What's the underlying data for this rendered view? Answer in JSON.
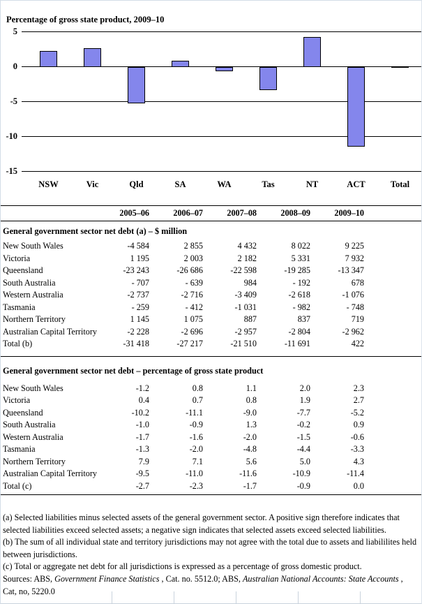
{
  "chart_data": {
    "type": "bar",
    "title": "Percentage of gross state product, 2009–10",
    "categories": [
      "NSW",
      "Vic",
      "Qld",
      "SA",
      "WA",
      "Tas",
      "NT",
      "ACT",
      "Total"
    ],
    "values": [
      2.3,
      2.7,
      -5.2,
      0.9,
      -0.6,
      -3.3,
      4.3,
      -11.4,
      0.0
    ],
    "ylabel": "",
    "xlabel": "",
    "ylim": [
      -15,
      5
    ],
    "yticks": [
      5,
      0,
      -5,
      -10,
      -15
    ],
    "grid": true,
    "legend": "none",
    "bar_color": "#8486ec",
    "bar_border_color": "#000000"
  },
  "table": {
    "col_headers": [
      "2005–06",
      "2006–07",
      "2007–08",
      "2008–09",
      "2009–10"
    ],
    "sections": [
      {
        "title": "General government sector net debt (a) – $ million",
        "rows": [
          {
            "label": "New South Wales",
            "values": [
              "-4 584",
              "2 855",
              "4 432",
              "8 022",
              "9 225"
            ]
          },
          {
            "label": "Victoria",
            "values": [
              "1 195",
              "2 003",
              "2 182",
              "5 331",
              "7 932"
            ]
          },
          {
            "label": "Queensland",
            "values": [
              "-23 243",
              "-26 686",
              "-22 598",
              "-19 285",
              "-13 347"
            ]
          },
          {
            "label": "South Australia",
            "values": [
              "- 707",
              "- 639",
              "984",
              "- 192",
              "678"
            ]
          },
          {
            "label": "Western Australia",
            "values": [
              "-2 737",
              "-2 716",
              "-3 409",
              "-2 618",
              "-1 076"
            ]
          },
          {
            "label": "Tasmania",
            "values": [
              "- 259",
              "- 412",
              "-1 031",
              "- 982",
              "- 748"
            ]
          },
          {
            "label": "Northern Territory",
            "values": [
              "1 145",
              "1 075",
              "887",
              "837",
              "719"
            ]
          },
          {
            "label": "Australian Capital Territory",
            "values": [
              "-2 228",
              "-2 696",
              "-2 957",
              "-2 804",
              "-2 962"
            ]
          },
          {
            "label": "Total (b)",
            "values": [
              "-31 418",
              "-27 217",
              "-21 510",
              "-11 691",
              "422"
            ]
          }
        ]
      },
      {
        "title": "General government sector net debt – percentage of gross state product",
        "rows": [
          {
            "label": "New South Wales",
            "values": [
              "-1.2",
              "0.8",
              "1.1",
              "2.0",
              "2.3"
            ]
          },
          {
            "label": "Victoria",
            "values": [
              "0.4",
              "0.7",
              "0.8",
              "1.9",
              "2.7"
            ]
          },
          {
            "label": "Queensland",
            "values": [
              "-10.2",
              "-11.1",
              "-9.0",
              "-7.7",
              "-5.2"
            ]
          },
          {
            "label": "South Australia",
            "values": [
              "-1.0",
              "-0.9",
              "1.3",
              "-0.2",
              "0.9"
            ]
          },
          {
            "label": "Western Australia",
            "values": [
              "-1.7",
              "-1.6",
              "-2.0",
              "-1.5",
              "-0.6"
            ]
          },
          {
            "label": "Tasmania",
            "values": [
              "-1.3",
              "-2.0",
              "-4.8",
              "-4.4",
              "-3.3"
            ]
          },
          {
            "label": "Northern Territory",
            "values": [
              "7.9",
              "7.1",
              "5.6",
              "5.0",
              "4.3"
            ]
          },
          {
            "label": "Australian Capital Territory",
            "values": [
              "-9.5",
              "-11.0",
              "-11.6",
              "-10.9",
              "-11.4"
            ]
          },
          {
            "label": "Total (c)",
            "values": [
              "-2.7",
              "-2.3",
              "-1.7",
              "-0.9",
              "0.0"
            ]
          }
        ]
      }
    ]
  },
  "footnotes": [
    "(a) Selected liabilities minus selected assets of the general government sector. A positive sign therefore indicates that selected liabilities exceed selected assets; a negative sign indicates that selected assets exceed selected liabilities.",
    "(b) The sum of all individual state and territory jurisdictions may not agree with the total due to assets and liabililites held between jurisdictions.",
    "(c) Total or aggregate net debt for all jurisdictions is expressed as a percentage of gross domestic product."
  ],
  "sources": {
    "prefix": "Sources: ABS, ",
    "italic1": "Government Finance Statistics",
    "mid": " , Cat. no. 5512.0; ABS, ",
    "italic2": "Australian National Accounts: State Accounts",
    "suffix": " , Cat, no, 5220.0"
  }
}
